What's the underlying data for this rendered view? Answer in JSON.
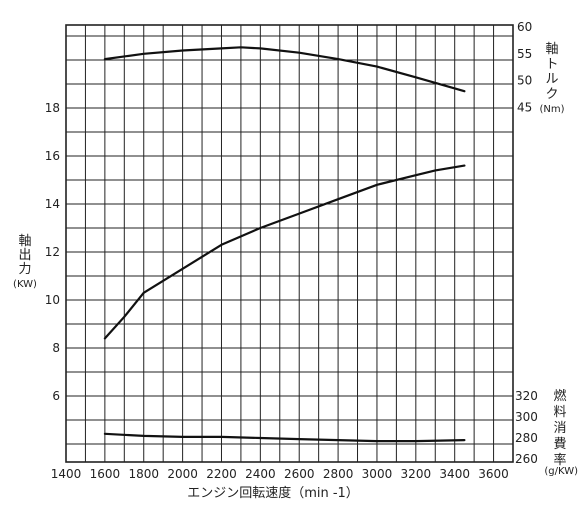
{
  "chart_data": {
    "type": "line",
    "x": {
      "label": "エンジン回転速度（min -1）",
      "range": [
        1400,
        3700
      ],
      "ticks": [
        1400,
        1600,
        1800,
        2000,
        2200,
        2400,
        2600,
        2800,
        3000,
        3200,
        3400,
        3600
      ]
    },
    "axes": {
      "power": {
        "label_lines": [
          "軸",
          "出",
          "力"
        ],
        "unit": "(KW)",
        "ticks": [
          6,
          8,
          10,
          12,
          14,
          16,
          18
        ]
      },
      "torque": {
        "label_lines": [
          "軸",
          "ト",
          "ル",
          "ク"
        ],
        "unit": "(Nm)",
        "ticks": [
          45,
          50,
          55,
          60
        ]
      },
      "fuel": {
        "label_lines": [
          "燃",
          "料",
          "消",
          "費",
          "率"
        ],
        "unit": "(g/KW)",
        "ticks": [
          260,
          280,
          300,
          320
        ]
      }
    },
    "series": [
      {
        "axis": "torque",
        "points": [
          [
            1600,
            54.0
          ],
          [
            1800,
            55.0
          ],
          [
            2000,
            55.6
          ],
          [
            2200,
            56.0
          ],
          [
            2300,
            56.2
          ],
          [
            2400,
            56.0
          ],
          [
            2600,
            55.2
          ],
          [
            2800,
            54.0
          ],
          [
            3000,
            52.6
          ],
          [
            3200,
            50.6
          ],
          [
            3450,
            48.0
          ]
        ]
      },
      {
        "axis": "power",
        "points": [
          [
            1600,
            8.4
          ],
          [
            1700,
            9.3
          ],
          [
            1800,
            10.3
          ],
          [
            2000,
            11.3
          ],
          [
            2200,
            12.3
          ],
          [
            2400,
            13.0
          ],
          [
            2600,
            13.6
          ],
          [
            2800,
            14.2
          ],
          [
            3000,
            14.8
          ],
          [
            3200,
            15.2
          ],
          [
            3300,
            15.4
          ],
          [
            3450,
            15.6
          ]
        ]
      },
      {
        "axis": "fuel",
        "points": [
          [
            1600,
            284
          ],
          [
            1800,
            282
          ],
          [
            2000,
            281
          ],
          [
            2200,
            281
          ],
          [
            2400,
            280
          ],
          [
            2600,
            279
          ],
          [
            2800,
            278
          ],
          [
            3000,
            277
          ],
          [
            3200,
            277
          ],
          [
            3450,
            278
          ]
        ]
      }
    ]
  }
}
